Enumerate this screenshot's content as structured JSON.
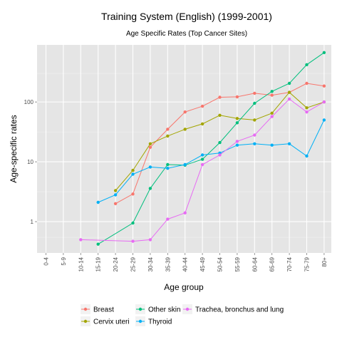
{
  "chart_data": {
    "type": "line",
    "title": "Training System (English) (1999-2001)",
    "subtitle": "Age Specific Rates (Top Cancer Sites)",
    "xlabel": "Age group",
    "ylabel": "Age-specific rates",
    "y_scale": "log10",
    "ylim": [
      0.3,
      900
    ],
    "y_ticks": [
      1,
      10,
      100
    ],
    "grid": true,
    "legend_position": "bottom",
    "categories": [
      "0-4",
      "5-9",
      "10-14",
      "15-19",
      "20-24",
      "25-29",
      "30-34",
      "35-39",
      "40-44",
      "45-49",
      "50-54",
      "55-59",
      "60-64",
      "65-69",
      "70-74",
      "75-79",
      "80+"
    ],
    "series": [
      {
        "name": "Breast",
        "color": "#F8766D",
        "values": [
          null,
          null,
          null,
          null,
          2.0,
          2.9,
          17.5,
          35,
          68,
          85,
          120,
          122,
          140,
          130,
          145,
          205,
          185
        ]
      },
      {
        "name": "Cervix uteri",
        "color": "#A3A500",
        "values": [
          null,
          null,
          null,
          null,
          3.3,
          7.2,
          20,
          27,
          35,
          43,
          60,
          53,
          50,
          65,
          145,
          80,
          100
        ]
      },
      {
        "name": "Other skin",
        "color": "#00BF7D",
        "values": [
          null,
          null,
          null,
          0.42,
          null,
          0.95,
          3.6,
          9,
          8.8,
          11,
          21,
          45,
          95,
          150,
          205,
          420,
          670
        ]
      },
      {
        "name": "Thyroid",
        "color": "#00B0F6",
        "values": [
          null,
          null,
          null,
          2.1,
          2.8,
          6.2,
          8.2,
          7.8,
          9,
          13,
          14,
          19,
          20,
          19,
          20,
          12.5,
          50
        ]
      },
      {
        "name": "Trachea, bronchus and lung",
        "color": "#E76BF3",
        "values": [
          null,
          null,
          0.5,
          null,
          null,
          0.47,
          0.5,
          1.1,
          1.4,
          9,
          13,
          22,
          28,
          57,
          112,
          68,
          100
        ]
      }
    ]
  }
}
